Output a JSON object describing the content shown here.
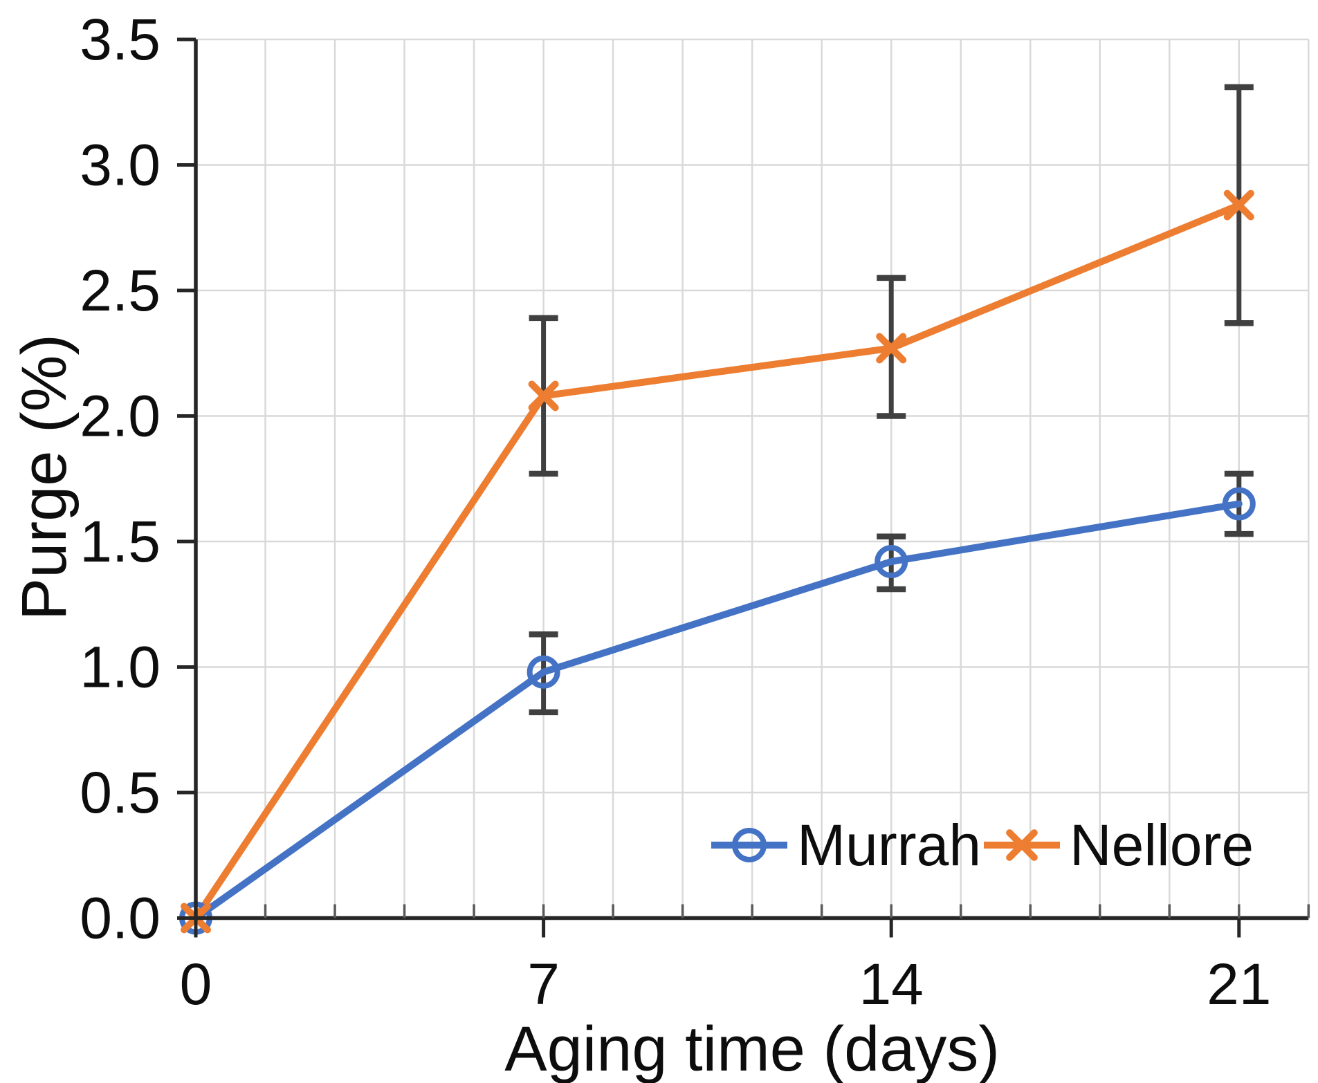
{
  "chart_data": {
    "type": "line",
    "title": "",
    "xlabel": "Aging time (days)",
    "ylabel": "Purge (%)",
    "x": [
      0,
      7,
      14,
      21
    ],
    "x_tick_labels": [
      "0",
      "7",
      "14",
      "21"
    ],
    "y_tick_labels": [
      "0.0",
      "0.5",
      "1.0",
      "1.5",
      "2.0",
      "2.5",
      "3.0",
      "3.5"
    ],
    "y_ticks": [
      0,
      0.5,
      1.0,
      1.5,
      2.0,
      2.5,
      3.0,
      3.5
    ],
    "xlim": [
      0,
      22.4
    ],
    "ylim": [
      0,
      3.5
    ],
    "x_major_unit": 7,
    "x_minor_unit": 1.4,
    "y_major_unit": 0.5,
    "grid": {
      "horizontal": true,
      "vertical_minor": true,
      "color": "#d9d9d9"
    },
    "legend": {
      "position": "inside-bottom-right",
      "entries": [
        "Murrah",
        "Nellore"
      ]
    },
    "series": [
      {
        "name": "Murrah",
        "color": "#4472C4",
        "marker": "circle",
        "values": [
          0.0,
          0.98,
          1.42,
          1.65
        ],
        "error_low": [
          null,
          0.82,
          1.31,
          1.53
        ],
        "error_high": [
          null,
          1.13,
          1.52,
          1.77
        ]
      },
      {
        "name": "Nellore",
        "color": "#ED7D31",
        "marker": "x",
        "values": [
          0.0,
          2.08,
          2.27,
          2.84
        ],
        "error_low": [
          null,
          1.77,
          2.0,
          2.37
        ],
        "error_high": [
          null,
          2.39,
          2.55,
          3.31
        ]
      }
    ],
    "error_bar_color": "#404040",
    "axis_color": "#262626"
  }
}
